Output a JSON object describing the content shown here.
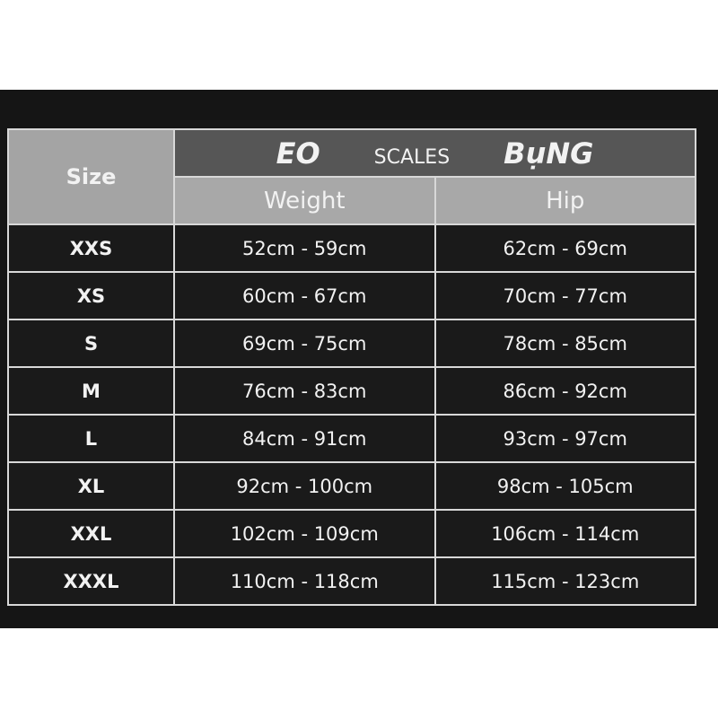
{
  "header": {
    "size": "Size",
    "title_left": "EO",
    "title_mid": "SCALES",
    "title_right": "BụNG",
    "col1": "Weight",
    "col2": "Hip"
  },
  "rows": [
    {
      "size": "XXS",
      "weight": "52cm - 59cm",
      "hip": "62cm - 69cm"
    },
    {
      "size": "XS",
      "weight": "60cm - 67cm",
      "hip": "70cm - 77cm"
    },
    {
      "size": "S",
      "weight": "69cm - 75cm",
      "hip": "78cm - 85cm"
    },
    {
      "size": "M",
      "weight": "76cm - 83cm",
      "hip": "86cm - 92cm"
    },
    {
      "size": "L",
      "weight": "84cm - 91cm",
      "hip": "93cm - 97cm"
    },
    {
      "size": "XL",
      "weight": "92cm - 100cm",
      "hip": "98cm - 105cm"
    },
    {
      "size": "XXL",
      "weight": "102cm - 109cm",
      "hip": "106cm - 114cm"
    },
    {
      "size": "XXXL",
      "weight": "110cm - 118cm",
      "hip": "115cm - 123cm"
    }
  ]
}
